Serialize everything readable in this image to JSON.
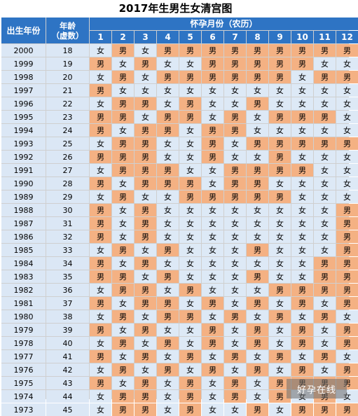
{
  "title": "2017年生男生女清宫图",
  "header": {
    "birth_year_label": "出生年份",
    "age_label_1": "年龄",
    "age_label_2": "（虚数）",
    "month_group_label": "怀孕月份（农历）",
    "months": [
      "1",
      "2",
      "3",
      "4",
      "5",
      "6",
      "7",
      "8",
      "9",
      "10",
      "11",
      "12"
    ]
  },
  "legend_values": {
    "male": "男",
    "female": "女"
  },
  "colors": {
    "header_bg": "#2e74c4",
    "male_bg": "#f4b183",
    "female_bg": "#dde9f6",
    "label_bg": "#dbe7f5"
  },
  "rows": [
    {
      "year": "2000",
      "age": "18",
      "cells": [
        "女",
        "男",
        "女",
        "男",
        "男",
        "男",
        "男",
        "男",
        "男",
        "男",
        "男",
        "男"
      ]
    },
    {
      "year": "1999",
      "age": "19",
      "cells": [
        "男",
        "女",
        "男",
        "女",
        "女",
        "男",
        "男",
        "男",
        "男",
        "男",
        "女",
        "女"
      ]
    },
    {
      "year": "1998",
      "age": "20",
      "cells": [
        "女",
        "男",
        "女",
        "男",
        "男",
        "男",
        "男",
        "男",
        "男",
        "女",
        "男",
        "男"
      ]
    },
    {
      "year": "1997",
      "age": "21",
      "cells": [
        "男",
        "女",
        "女",
        "女",
        "女",
        "女",
        "女",
        "女",
        "女",
        "女",
        "女",
        "女"
      ]
    },
    {
      "year": "1996",
      "age": "22",
      "cells": [
        "女",
        "男",
        "男",
        "女",
        "男",
        "女",
        "女",
        "男",
        "女",
        "女",
        "女",
        "女"
      ]
    },
    {
      "year": "1995",
      "age": "23",
      "cells": [
        "男",
        "男",
        "女",
        "男",
        "男",
        "女",
        "男",
        "女",
        "男",
        "男",
        "男",
        "女"
      ]
    },
    {
      "year": "1994",
      "age": "24",
      "cells": [
        "男",
        "女",
        "男",
        "男",
        "女",
        "男",
        "男",
        "女",
        "女",
        "女",
        "女",
        "女"
      ]
    },
    {
      "year": "1993",
      "age": "25",
      "cells": [
        "女",
        "男",
        "男",
        "女",
        "女",
        "男",
        "女",
        "男",
        "男",
        "男",
        "男",
        "男"
      ]
    },
    {
      "year": "1992",
      "age": "26",
      "cells": [
        "男",
        "男",
        "男",
        "女",
        "女",
        "男",
        "女",
        "女",
        "男",
        "女",
        "女",
        "女"
      ]
    },
    {
      "year": "1991",
      "age": "27",
      "cells": [
        "女",
        "男",
        "男",
        "男",
        "女",
        "女",
        "男",
        "男",
        "男",
        "男",
        "女",
        "女"
      ]
    },
    {
      "year": "1990",
      "age": "28",
      "cells": [
        "男",
        "女",
        "男",
        "男",
        "男",
        "女",
        "男",
        "男",
        "女",
        "女",
        "女",
        "女"
      ]
    },
    {
      "year": "1989",
      "age": "29",
      "cells": [
        "女",
        "男",
        "女",
        "女",
        "男",
        "男",
        "男",
        "男",
        "男",
        "女",
        "女",
        "女"
      ]
    },
    {
      "year": "1988",
      "age": "30",
      "cells": [
        "男",
        "女",
        "男",
        "女",
        "女",
        "女",
        "女",
        "女",
        "女",
        "女",
        "女",
        "男"
      ]
    },
    {
      "year": "1987",
      "age": "31",
      "cells": [
        "男",
        "女",
        "男",
        "女",
        "女",
        "女",
        "女",
        "女",
        "女",
        "女",
        "女",
        "男"
      ]
    },
    {
      "year": "1986",
      "age": "32",
      "cells": [
        "男",
        "女",
        "男",
        "女",
        "女",
        "女",
        "女",
        "女",
        "女",
        "女",
        "女",
        "男"
      ]
    },
    {
      "year": "1985",
      "age": "33",
      "cells": [
        "女",
        "男",
        "女",
        "男",
        "女",
        "女",
        "女",
        "男",
        "女",
        "女",
        "女",
        "男"
      ]
    },
    {
      "year": "1984",
      "age": "34",
      "cells": [
        "男",
        "女",
        "男",
        "女",
        "女",
        "女",
        "女",
        "女",
        "女",
        "女",
        "男",
        "男"
      ]
    },
    {
      "year": "1983",
      "age": "35",
      "cells": [
        "男",
        "男",
        "女",
        "男",
        "女",
        "女",
        "女",
        "男",
        "女",
        "女",
        "男",
        "男"
      ]
    },
    {
      "year": "1982",
      "age": "36",
      "cells": [
        "女",
        "男",
        "男",
        "女",
        "男",
        "女",
        "女",
        "女",
        "男",
        "男",
        "男",
        "男"
      ]
    },
    {
      "year": "1981",
      "age": "37",
      "cells": [
        "男",
        "女",
        "男",
        "男",
        "女",
        "男",
        "女",
        "男",
        "女",
        "男",
        "女",
        "男"
      ]
    },
    {
      "year": "1980",
      "age": "38",
      "cells": [
        "女",
        "男",
        "女",
        "男",
        "男",
        "女",
        "男",
        "女",
        "男",
        "女",
        "男",
        "女"
      ]
    },
    {
      "year": "1979",
      "age": "39",
      "cells": [
        "男",
        "女",
        "男",
        "女",
        "女",
        "男",
        "女",
        "男",
        "女",
        "男",
        "女",
        "男"
      ]
    },
    {
      "year": "1978",
      "age": "40",
      "cells": [
        "女",
        "男",
        "女",
        "男",
        "女",
        "男",
        "女",
        "男",
        "女",
        "男",
        "女",
        "男"
      ]
    },
    {
      "year": "1977",
      "age": "41",
      "cells": [
        "男",
        "女",
        "男",
        "女",
        "男",
        "女",
        "男",
        "女",
        "男",
        "女",
        "男",
        "女"
      ]
    },
    {
      "year": "1976",
      "age": "42",
      "cells": [
        "女",
        "男",
        "女",
        "男",
        "女",
        "男",
        "女",
        "男",
        "女",
        "男",
        "女",
        "男"
      ]
    },
    {
      "year": "1975",
      "age": "43",
      "cells": [
        "男",
        "女",
        "男",
        "女",
        "男",
        "女",
        "男",
        "女",
        "男",
        "男",
        "男",
        "男"
      ]
    },
    {
      "year": "1974",
      "age": "44",
      "cells": [
        "女",
        "男",
        "男",
        "女",
        "男",
        "女",
        "男",
        "女",
        "男",
        "女",
        "男",
        "女"
      ]
    },
    {
      "year": "1973",
      "age": "45",
      "cells": [
        "女",
        "男",
        "男",
        "女",
        "男",
        "女",
        "女",
        "男",
        "女",
        "男",
        "男",
        "男"
      ]
    }
  ],
  "watermark": "好孕在线"
}
